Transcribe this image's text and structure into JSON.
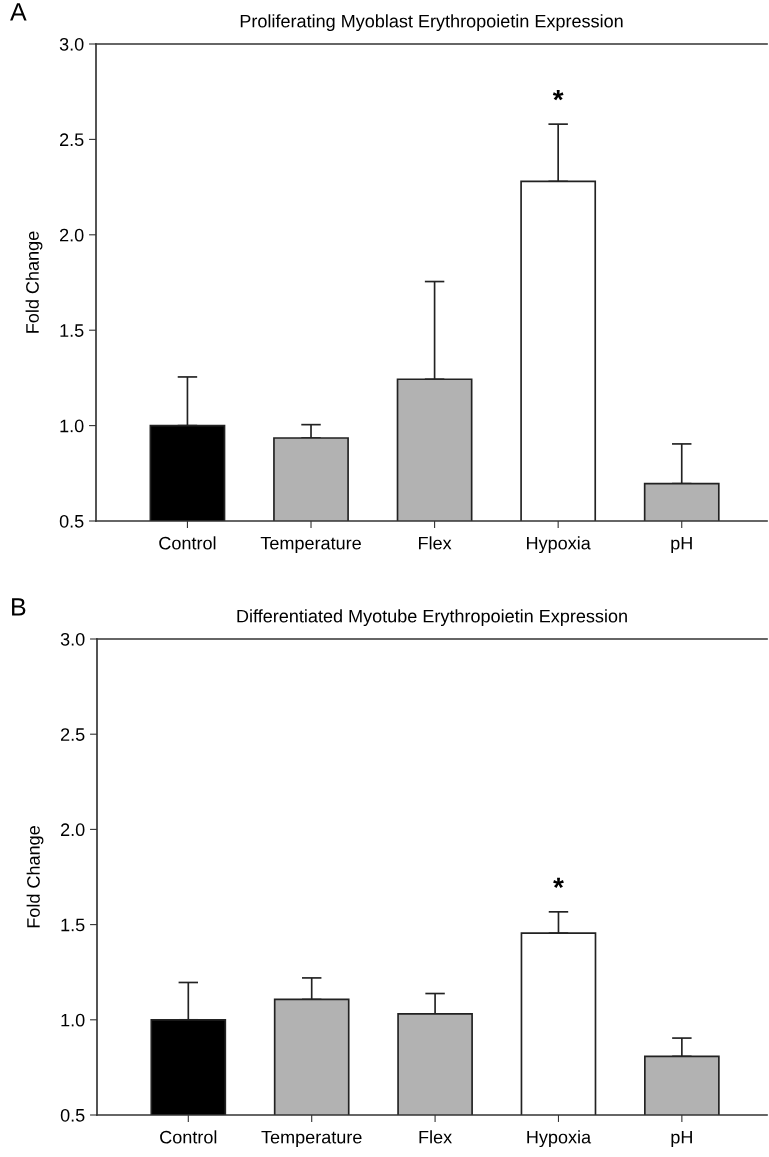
{
  "chart_data": [
    {
      "type": "bar",
      "title": "Proliferating Myoblast Erythropoietin Expression",
      "ylabel": "Fold Change",
      "categories": [
        "Control",
        "Temperature",
        "Flex",
        "Hypoxia",
        "pH"
      ],
      "values": [
        1.0,
        0.935,
        1.243,
        2.28,
        0.696
      ],
      "colors": [
        "#000000",
        "#b2b2b2",
        "#b2b2b2",
        "#ffffff",
        "#b2b2b2"
      ],
      "errors": [
        [
          1.0,
          1.255
        ],
        [
          0.935,
          1.005
        ],
        [
          1.243,
          1.755
        ],
        [
          2.28,
          2.58
        ],
        [
          0.696,
          0.904
        ]
      ],
      "ylim": [
        0.5,
        3.0
      ],
      "yticks": [
        {
          "value": 0.5,
          "label": "0.5"
        },
        {
          "value": 1.0,
          "label": "1.0"
        },
        {
          "value": 1.5,
          "label": "1.5"
        },
        {
          "value": 2.0,
          "label": "2.0"
        },
        {
          "value": 2.5,
          "label": "2.5"
        },
        {
          "value": 3.0,
          "label": "3.0"
        }
      ],
      "grid": false,
      "annotations": [
        "A",
        "*"
      ]
    },
    {
      "type": "bar",
      "title": "Differentiated Myotube Erythropoietin Expression",
      "ylabel": "Fold Change",
      "categories": [
        "Control",
        "Temperature",
        "Flex",
        "Hypoxia",
        "pH"
      ],
      "values": [
        1.0,
        1.107,
        1.031,
        1.455,
        0.808
      ],
      "colors": [
        "#000000",
        "#b2b2b2",
        "#b2b2b2",
        "#ffffff",
        "#b2b2b2"
      ],
      "errors": [
        [
          1.0,
          1.196
        ],
        [
          1.107,
          1.22
        ],
        [
          1.031,
          1.138
        ],
        [
          1.455,
          1.567
        ],
        [
          0.808,
          0.904
        ]
      ],
      "ylim": [
        0.5,
        3.0
      ],
      "yticks": [
        {
          "value": 0.5,
          "label": "0.5"
        },
        {
          "value": 1.0,
          "label": "1.0"
        },
        {
          "value": 1.5,
          "label": "1.5"
        },
        {
          "value": 2.0,
          "label": "2.0"
        },
        {
          "value": 2.5,
          "label": "2.5"
        },
        {
          "value": 3.0,
          "label": "3.0"
        }
      ],
      "grid": false,
      "annotations": [
        "B",
        "*"
      ]
    }
  ]
}
